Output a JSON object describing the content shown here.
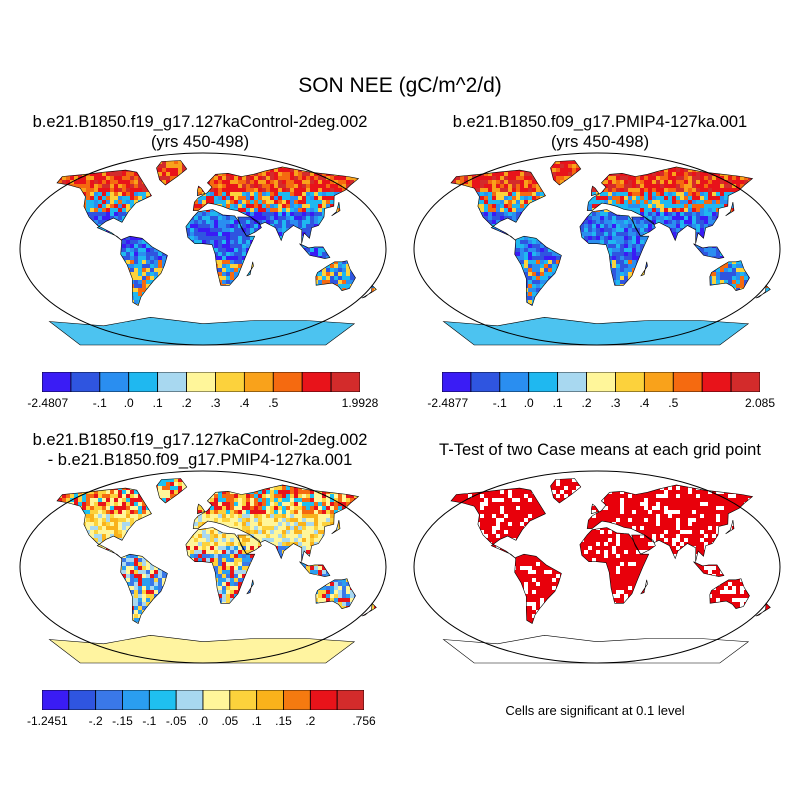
{
  "figure_title": "SON NEE (gC/m^2/d)",
  "panels": [
    {
      "id": "case1",
      "title_line1": "b.e21.B1850.f19_g17.127kaControl-2deg.002",
      "title_line2": "(yrs 450-498)",
      "kind": "mean"
    },
    {
      "id": "case2",
      "title_line1": "b.e21.B1850.f09_g17.PMIP4-127ka.001",
      "title_line2": "(yrs 450-498)",
      "kind": "mean"
    },
    {
      "id": "diff",
      "title_line1": "b.e21.B1850.f19_g17.127kaControl-2deg.002",
      "title_line2": "- b.e21.B1850.f09_g17.PMIP4-127ka.001",
      "kind": "difference"
    },
    {
      "id": "ttest",
      "title_line1": "T-Test of two Case means at each grid point",
      "title_line2": "",
      "kind": "significance"
    }
  ],
  "colorbars": [
    {
      "id": "cb1",
      "colors": [
        "#3a1cf5",
        "#2f55e0",
        "#2a8ef0",
        "#1fb8f0",
        "#a8d8f0",
        "#fff69a",
        "#fcd23c",
        "#f9a21b",
        "#f56a10",
        "#e8131a",
        "#d32b2b"
      ],
      "labels": [
        "-2.4807",
        "-.1",
        ".0",
        ".1",
        ".2",
        ".3",
        ".4",
        ".5",
        "1.9928"
      ]
    },
    {
      "id": "cb2",
      "colors": [
        "#3a1cf5",
        "#2f55e0",
        "#2a8ef0",
        "#1fb8f0",
        "#a8d8f0",
        "#fff69a",
        "#fcd23c",
        "#f9a21b",
        "#f56a10",
        "#e8131a",
        "#d32b2b"
      ],
      "labels": [
        "-2.4877",
        "-.1",
        ".0",
        ".1",
        ".2",
        ".3",
        ".4",
        ".5",
        "2.085"
      ]
    },
    {
      "id": "cb3",
      "colors": [
        "#3a1cf5",
        "#2f55e0",
        "#3a78e8",
        "#2a9ef0",
        "#1fc0f0",
        "#a8d8f0",
        "#fff69a",
        "#fcd23c",
        "#f9b21b",
        "#f57a10",
        "#e8131a",
        "#d32b2b"
      ],
      "labels": [
        "-1.2451",
        "-.2",
        "-.15",
        "-.1",
        "-.05",
        ".0",
        ".05",
        ".1",
        ".15",
        ".2",
        ".756"
      ]
    }
  ],
  "significance_note": "Cells are significant at 0.1 level",
  "colors": {
    "ocean": "#ffffff",
    "antarctica_mean": "#4cc3f0",
    "antarctica_diff": "#fff4a0",
    "significant": "#e8000b"
  }
}
